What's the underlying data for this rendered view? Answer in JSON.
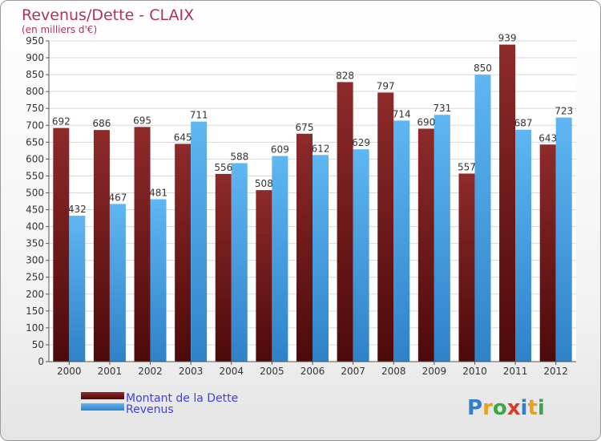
{
  "title": "Revenus/Dette - CLAIX",
  "subtitle": "(en milliers d'€)",
  "logo_text": "Proxiti",
  "colors": {
    "title": "#b03060",
    "series_dette": "#7a1a1a",
    "series_revenus": "#4aa6e6",
    "legend_text": "#4040e0"
  },
  "chart_data": {
    "type": "bar",
    "title": "Revenus/Dette - CLAIX",
    "ylabel": "(en milliers d'€)",
    "ylim": [
      0,
      950
    ],
    "ytick_step": 50,
    "grid": true,
    "legend_position": "bottom-left",
    "categories": [
      "2000",
      "2001",
      "2002",
      "2003",
      "2004",
      "2005",
      "2006",
      "2007",
      "2008",
      "2009",
      "2010",
      "2011",
      "2012"
    ],
    "series": [
      {
        "name": "Montant de la Dette",
        "color": "#7a1a1a",
        "values": [
          692,
          686,
          695,
          645,
          556,
          508,
          675,
          828,
          797,
          690,
          557,
          939,
          643
        ]
      },
      {
        "name": "Revenus",
        "color": "#4aa6e6",
        "values": [
          432,
          467,
          481,
          711,
          588,
          609,
          612,
          629,
          714,
          731,
          850,
          687,
          723
        ]
      }
    ]
  }
}
